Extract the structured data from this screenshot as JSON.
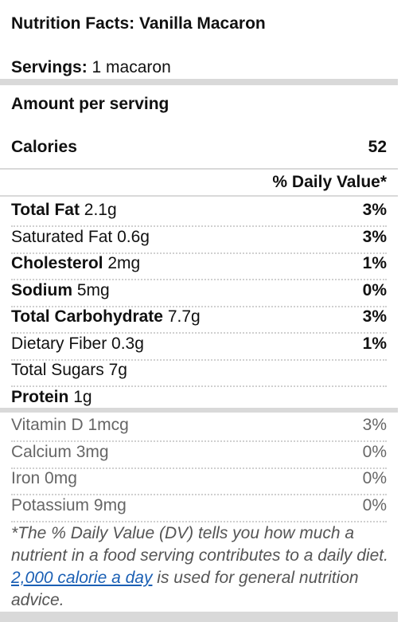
{
  "title": "Nutrition Facts: Vanilla Macaron",
  "servings": {
    "label": "Servings:",
    "value": "1 macaron"
  },
  "amount_label": "Amount per serving",
  "calories": {
    "label": "Calories",
    "value": "52"
  },
  "dv_header": "% Daily Value*",
  "nutrients": [
    {
      "name": "Total Fat",
      "amount": "2.1g",
      "pct": "3%"
    },
    {
      "name": "Saturated Fat",
      "amount": "0.6g",
      "pct": "3%"
    },
    {
      "name": "Cholesterol",
      "amount": "2mg",
      "pct": "1%"
    },
    {
      "name": "Sodium",
      "amount": "5mg",
      "pct": "0%"
    },
    {
      "name": "Total Carbohydrate",
      "amount": "7.7g",
      "pct": "3%"
    },
    {
      "name": "Dietary Fiber",
      "amount": "0.3g",
      "pct": "1%"
    },
    {
      "name": "Total Sugars",
      "amount": "7g",
      "pct": ""
    },
    {
      "name": "Protein",
      "amount": "1g",
      "pct": ""
    }
  ],
  "vitamins": [
    {
      "name": "Vitamin D",
      "amount": "1mcg",
      "pct": "3%"
    },
    {
      "name": "Calcium",
      "amount": "3mg",
      "pct": "0%"
    },
    {
      "name": "Iron",
      "amount": "0mg",
      "pct": "0%"
    },
    {
      "name": "Potassium",
      "amount": "9mg",
      "pct": "0%"
    }
  ],
  "footnote": {
    "before": "*The % Daily Value (DV) tells you how much a nutrient in a food serving contributes to a daily diet. ",
    "link": "2,000 calorie a day",
    "after": " is used for general nutrition advice."
  },
  "colors": {
    "divider": "#d9d9d9",
    "link": "#1a5fb4",
    "muted": "#666666"
  }
}
